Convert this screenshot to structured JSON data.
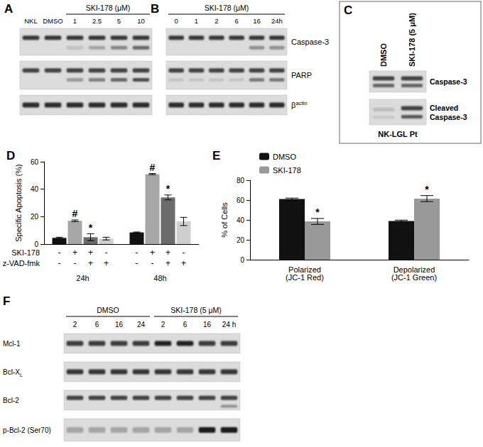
{
  "panels": {
    "A": {
      "label": "A",
      "controls": [
        "NKL",
        "DMSO"
      ],
      "treatment": {
        "text": "SKI-178 (μM)",
        "lanes": [
          "1",
          "2.5",
          "5",
          "10"
        ]
      }
    },
    "B": {
      "label": "B",
      "controls": [],
      "treatment": {
        "text": "SKI-178 (μM)",
        "lanes": [
          "0",
          "1",
          "2",
          "6",
          "16",
          "24h"
        ]
      },
      "rows": [
        {
          "text": "Caspase-3"
        },
        {
          "text": "PARP"
        },
        {
          "text": "β",
          "sup": "actin"
        }
      ]
    },
    "C": {
      "label": "C",
      "lanes": [
        "DMSO",
        "SKI-178 (5 μM)"
      ],
      "rows": [
        {
          "text": "Caspase-3"
        },
        {
          "text": "Cleaved Caspase-3"
        }
      ],
      "sample": "NK-LGL Pt"
    },
    "F": {
      "label": "F",
      "groups": [
        {
          "text": "DMSO",
          "lanes": [
            "2",
            "6",
            "16",
            "24"
          ]
        },
        {
          "text": "SKI-178 (5 μM)",
          "lanes": [
            "2",
            "6",
            "16",
            "24 h"
          ]
        }
      ],
      "rows": [
        {
          "text": "Mcl-1"
        },
        {
          "text": "Bcl-X",
          "sub": "L"
        },
        {
          "text": "Bcl-2"
        },
        {
          "text": "p-Bcl-2 (Ser70)"
        }
      ]
    }
  },
  "chart_data": [
    {
      "type": "bar",
      "title": "D",
      "y_label": "Specific Apoptosis (%)",
      "categories": [
        "24h",
        "48h"
      ],
      "series": [
        {
          "color": "#111111",
          "values": [
            4.5,
            8.5
          ],
          "errors": [
            0.5,
            0.3
          ]
        },
        {
          "color": "#a6a6a6",
          "values": [
            17,
            51
          ],
          "errors": [
            0.6,
            0.4
          ],
          "marks": [
            "#",
            "#"
          ]
        },
        {
          "color": "#6b6b6b",
          "values": [
            5,
            34
          ],
          "errors": [
            2.5,
            1.8
          ],
          "marks": [
            "*",
            "*"
          ]
        },
        {
          "color": "#cfcfcf",
          "values": [
            4,
            16.5
          ],
          "errors": [
            1,
            3
          ]
        }
      ],
      "treatments": [
        {
          "label": "SKI-178",
          "signs": [
            "-",
            "+",
            "+",
            "-"
          ]
        },
        {
          "label": "z-VAD-fmk",
          "signs": [
            "-",
            "-",
            "+",
            "+"
          ]
        }
      ],
      "ylim": [
        0,
        60
      ],
      "yticks": [
        0,
        20,
        40,
        60
      ],
      "grid": false
    },
    {
      "type": "bar",
      "title": "E",
      "y_label": "% of Cells",
      "categories": [
        "Polarized (JC-1 Red)",
        "Depolarized (JC-1 Green)"
      ],
      "series": [
        {
          "name": "DMSO",
          "color": "#111111",
          "values": [
            61,
            39
          ],
          "errors": [
            1,
            0.8
          ]
        },
        {
          "name": "SKI-178",
          "color": "#999999",
          "values": [
            38.5,
            61.5
          ],
          "errors": [
            3,
            3
          ],
          "marks": [
            "*",
            "*"
          ]
        }
      ],
      "legend": "upper left",
      "ylim": [
        0,
        80
      ],
      "yticks": [
        0,
        20,
        40,
        60,
        80
      ],
      "grid": false
    }
  ]
}
